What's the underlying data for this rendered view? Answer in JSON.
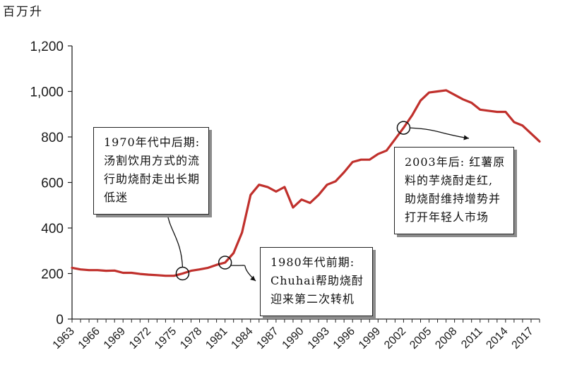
{
  "chart_data": {
    "type": "line",
    "title": "",
    "ylabel": "百万升",
    "xlabel": "",
    "ylim": [
      0,
      1200
    ],
    "xlim": [
      1963,
      2018
    ],
    "y_ticks": [
      "0",
      "200",
      "400",
      "600",
      "800",
      "1,000",
      "1,200"
    ],
    "y_tick_values": [
      0,
      200,
      400,
      600,
      800,
      1000,
      1200
    ],
    "x_ticks": [
      "1963",
      "1966",
      "1969",
      "1972",
      "1975",
      "1978",
      "1981",
      "1984",
      "1987",
      "1990",
      "1993",
      "1996",
      "1999",
      "2002",
      "2005",
      "2008",
      "2011",
      "2014",
      "2017"
    ],
    "grid": false,
    "legend": "none",
    "series": [
      {
        "color": "#c0302c",
        "points": [
          [
            1963,
            225
          ],
          [
            1964,
            218
          ],
          [
            1965,
            215
          ],
          [
            1966,
            215
          ],
          [
            1967,
            212
          ],
          [
            1968,
            213
          ],
          [
            1969,
            203
          ],
          [
            1970,
            203
          ],
          [
            1971,
            198
          ],
          [
            1972,
            195
          ],
          [
            1973,
            193
          ],
          [
            1974,
            190
          ],
          [
            1975,
            190
          ],
          [
            1976,
            200
          ],
          [
            1977,
            212
          ],
          [
            1978,
            218
          ],
          [
            1979,
            225
          ],
          [
            1980,
            238
          ],
          [
            1981,
            248
          ],
          [
            1982,
            290
          ],
          [
            1983,
            380
          ],
          [
            1984,
            545
          ],
          [
            1985,
            590
          ],
          [
            1986,
            580
          ],
          [
            1987,
            560
          ],
          [
            1988,
            580
          ],
          [
            1989,
            490
          ],
          [
            1990,
            525
          ],
          [
            1991,
            510
          ],
          [
            1992,
            545
          ],
          [
            1993,
            590
          ],
          [
            1994,
            605
          ],
          [
            1995,
            645
          ],
          [
            1996,
            690
          ],
          [
            1997,
            700
          ],
          [
            1998,
            700
          ],
          [
            1999,
            725
          ],
          [
            2000,
            740
          ],
          [
            2001,
            790
          ],
          [
            2002,
            840
          ],
          [
            2003,
            895
          ],
          [
            2004,
            960
          ],
          [
            2005,
            995
          ],
          [
            2006,
            1000
          ],
          [
            2007,
            1005
          ],
          [
            2008,
            985
          ],
          [
            2009,
            965
          ],
          [
            2010,
            950
          ],
          [
            2011,
            920
          ],
          [
            2012,
            915
          ],
          [
            2013,
            910
          ],
          [
            2014,
            910
          ],
          [
            2015,
            865
          ],
          [
            2016,
            850
          ],
          [
            2017,
            815
          ],
          [
            2018,
            780
          ]
        ]
      }
    ],
    "annotations": [
      {
        "id": "mid-late-1970s",
        "lines": [
          "1970年代中后期:",
          "汤割饮用方式的流",
          "行助烧酎走出长期",
          "低迷"
        ],
        "marker": [
          1976,
          200
        ]
      },
      {
        "id": "early-1980s",
        "lines": [
          "1980年代前期:",
          "Chuhai帮助烧酎",
          "迎来第二次转机"
        ],
        "marker": [
          1981,
          248
        ]
      },
      {
        "id": "after-2003",
        "lines": [
          "2003年后: 红薯原",
          "料的芋烧酎走红,",
          "助烧酎维持增势并",
          "打开年轻人市场"
        ],
        "marker": [
          2002,
          840
        ]
      }
    ]
  }
}
